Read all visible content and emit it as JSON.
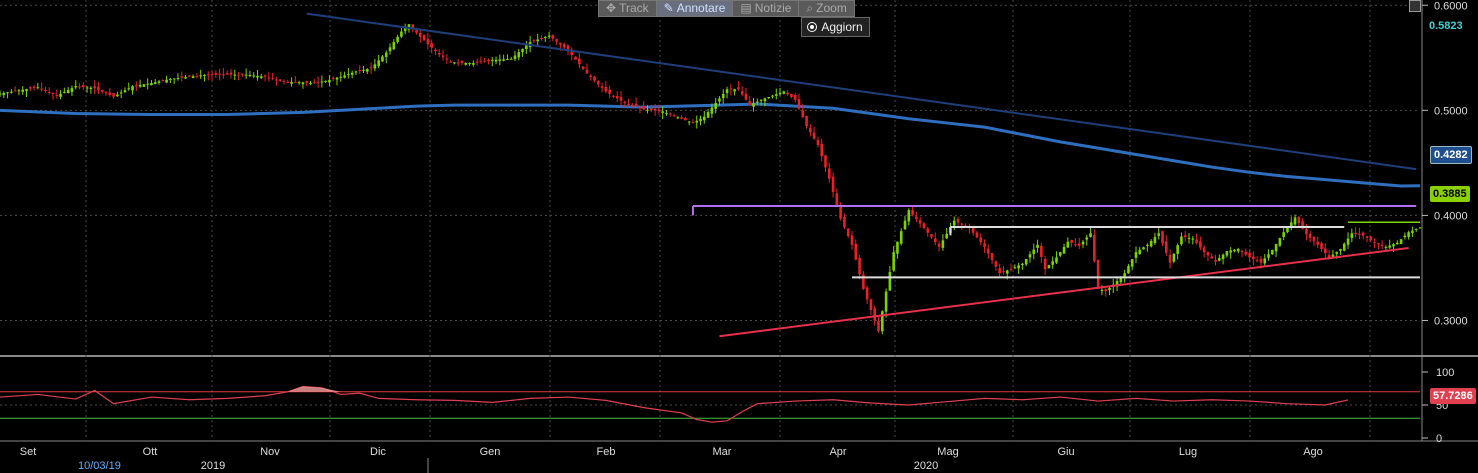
{
  "toolbar": {
    "track_label": "Track",
    "annotate_label": "Annotare",
    "news_label": "Notizie",
    "zoom_label": "Zoom",
    "refresh_label": "Aggiorn"
  },
  "colors": {
    "background": "#000000",
    "candle_up": "#7dd300",
    "candle_down": "#e8202a",
    "moving_average": "#2f6fbf",
    "downtrend_line": "#1f3f7a",
    "support_line": "#e8304a",
    "resistance_line": "#b070f0",
    "range_box": "#dddddd",
    "rsi_line": "#e04050",
    "rsi_upper_band": "#e04040",
    "rsi_lower_band": "#3fbf3f",
    "grid": "#4a4a4a"
  },
  "price_labels": {
    "last_high": "0.5823",
    "moving_average": "0.4282",
    "last_price": "0.3885",
    "rsi_value": "57.7286"
  },
  "chart_data": {
    "type": "candlestick",
    "y_axis": {
      "ticks": [
        "0.6000",
        "0.5000",
        "0.4000",
        "0.3000"
      ],
      "range": [
        0.27,
        0.605
      ]
    },
    "x_axis": {
      "months": [
        "Set",
        "Ott",
        "Nov",
        "Dic",
        "Gen",
        "Feb",
        "Mar",
        "Apr",
        "Mag",
        "Giu",
        "Lug",
        "Ago"
      ],
      "years": [
        "2019",
        "2020"
      ],
      "start_date": "10/03/19"
    },
    "series": [
      {
        "kind": "candles",
        "x": [
          0,
          5,
          10,
          15,
          20,
          25,
          30,
          35,
          40,
          45,
          50,
          55,
          60,
          65,
          70,
          75,
          78,
          82,
          86,
          90,
          94,
          98,
          102,
          106,
          108,
          111,
          113,
          116,
          119,
          122,
          125,
          130,
          135,
          140,
          145,
          150,
          155,
          160,
          165,
          170,
          175,
          180,
          183,
          186,
          189,
          192,
          195,
          198,
          201,
          204,
          207,
          210,
          213,
          216,
          219,
          222,
          225,
          228,
          232,
          236,
          240,
          244,
          248,
          252,
          256,
          260,
          264,
          267,
          270,
          272,
          274,
          276,
          279,
          282,
          285,
          288,
          290,
          292,
          294,
          297,
          300,
          303,
          306,
          309,
          312,
          315,
          318,
          321,
          324,
          327,
          330,
          333,
          336,
          339,
          342,
          345,
          348,
          351,
          354,
          357,
          360,
          363,
          366,
          369,
          372,
          375
        ],
        "close": [
          0.516,
          0.519,
          0.522,
          0.514,
          0.523,
          0.521,
          0.513,
          0.523,
          0.526,
          0.53,
          0.532,
          0.534,
          0.534,
          0.534,
          0.532,
          0.527,
          0.527,
          0.526,
          0.528,
          0.532,
          0.537,
          0.54,
          0.555,
          0.575,
          0.582,
          0.57,
          0.563,
          0.553,
          0.546,
          0.545,
          0.545,
          0.548,
          0.549,
          0.565,
          0.571,
          0.557,
          0.535,
          0.518,
          0.507,
          0.501,
          0.499,
          0.492,
          0.488,
          0.494,
          0.507,
          0.52,
          0.52,
          0.505,
          0.51,
          0.514,
          0.518,
          0.51,
          0.485,
          0.467,
          0.435,
          0.397,
          0.372,
          0.33,
          0.29,
          0.365,
          0.405,
          0.388,
          0.37,
          0.395,
          0.388,
          0.37,
          0.345,
          0.349,
          0.354,
          0.363,
          0.372,
          0.349,
          0.36,
          0.375,
          0.371,
          0.383,
          0.33,
          0.328,
          0.334,
          0.345,
          0.365,
          0.372,
          0.383,
          0.355,
          0.38,
          0.378,
          0.365,
          0.356,
          0.366,
          0.368,
          0.36,
          0.355,
          0.367,
          0.384,
          0.398,
          0.382,
          0.372,
          0.36,
          0.368,
          0.383,
          0.381,
          0.374,
          0.37,
          0.374,
          0.384,
          0.3885
        ]
      },
      {
        "kind": "moving_average",
        "x": [
          0,
          20,
          40,
          60,
          80,
          100,
          110,
          120,
          130,
          140,
          150,
          160,
          170,
          180,
          190,
          200,
          210,
          220,
          230,
          240,
          250,
          260,
          270,
          280,
          290,
          300,
          310,
          320,
          330,
          340,
          350,
          360,
          370,
          375
        ],
        "y": [
          0.5,
          0.497,
          0.496,
          0.496,
          0.498,
          0.502,
          0.504,
          0.505,
          0.505,
          0.505,
          0.505,
          0.504,
          0.503,
          0.504,
          0.505,
          0.506,
          0.504,
          0.502,
          0.497,
          0.492,
          0.488,
          0.484,
          0.477,
          0.47,
          0.464,
          0.458,
          0.452,
          0.446,
          0.441,
          0.437,
          0.434,
          0.431,
          0.428,
          0.4282
        ]
      },
      {
        "kind": "downtrend_line",
        "x": [
          81,
          374
        ],
        "y": [
          0.592,
          0.444
        ]
      },
      {
        "kind": "support_line",
        "x": [
          190,
          372
        ],
        "y": [
          0.285,
          0.369
        ]
      },
      {
        "kind": "resistance_line",
        "x": [
          183,
          374
        ],
        "y": [
          0.409,
          0.409
        ]
      },
      {
        "kind": "range_top",
        "x": [
          251,
          355
        ],
        "y": [
          0.389,
          0.389
        ]
      },
      {
        "kind": "range_bottom",
        "x": [
          225,
          375
        ],
        "y": [
          0.341,
          0.341
        ]
      },
      {
        "kind": "last_price_marker",
        "x": [
          356,
          375
        ],
        "y": [
          0.3935,
          0.3935
        ]
      }
    ],
    "rsi": {
      "ticks": [
        "100",
        "50",
        "0"
      ],
      "upper_band": 70,
      "lower_band": 30,
      "x": [
        0,
        10,
        20,
        25,
        30,
        40,
        50,
        60,
        70,
        76,
        80,
        85,
        90,
        95,
        100,
        110,
        120,
        130,
        140,
        150,
        160,
        170,
        180,
        184,
        188,
        192,
        196,
        200,
        210,
        220,
        230,
        240,
        250,
        260,
        270,
        280,
        290,
        300,
        310,
        320,
        330,
        340,
        350,
        356
      ],
      "y": [
        62,
        66,
        59,
        72,
        52,
        62,
        58,
        60,
        64,
        70,
        78,
        76,
        66,
        68,
        60,
        58,
        57,
        54,
        60,
        62,
        57,
        46,
        38,
        28,
        24,
        26,
        40,
        52,
        56,
        58,
        53,
        50,
        55,
        60,
        58,
        62,
        56,
        60,
        56,
        58,
        56,
        52,
        50,
        57.7286
      ]
    }
  }
}
